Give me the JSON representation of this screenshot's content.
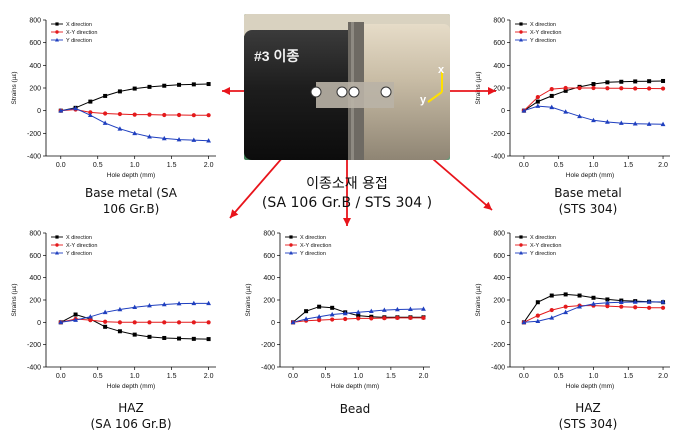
{
  "photo": {
    "marker_text": "#3 이종",
    "axis_x_label": "x",
    "axis_y_label": "y"
  },
  "center_caption": {
    "line1": "이종소재 용접",
    "line2": "(SA 106 Gr.B / STS 304 )"
  },
  "colors": {
    "x_direction": "#000000",
    "xy_direction": "#e41a1c",
    "y_direction": "#1f3fbf",
    "arrow": "#e8141b"
  },
  "chart_data": [
    {
      "type": "line",
      "caption_line1": "Base metal  (SA",
      "caption_line2": "106  Gr.B)",
      "xlabel": "Hole depth (mm)",
      "ylabel": "Strains (µε)",
      "xlim": [
        -0.2,
        2.1
      ],
      "ylim": [
        -400,
        800
      ],
      "xticks": [
        "0.0",
        "0.5",
        "1.0",
        "1.5",
        "2.0"
      ],
      "yticks": [
        "-400",
        "-200",
        "0",
        "200",
        "400",
        "600",
        "800"
      ],
      "legend_position": "top-left",
      "series": [
        {
          "name": "X direction",
          "color": "#000000",
          "marker": "square",
          "x": [
            0.0,
            0.2,
            0.4,
            0.6,
            0.8,
            1.0,
            1.2,
            1.4,
            1.6,
            1.8,
            2.0
          ],
          "y": [
            0,
            25,
            80,
            130,
            170,
            195,
            210,
            220,
            228,
            232,
            235
          ]
        },
        {
          "name": "X-Y direction",
          "color": "#e41a1c",
          "marker": "circle",
          "x": [
            0.0,
            0.2,
            0.4,
            0.6,
            0.8,
            1.0,
            1.2,
            1.4,
            1.6,
            1.8,
            2.0
          ],
          "y": [
            0,
            10,
            -15,
            -25,
            -30,
            -35,
            -35,
            -38,
            -38,
            -40,
            -40
          ]
        },
        {
          "name": "Y direction",
          "color": "#1f3fbf",
          "marker": "triangle",
          "x": [
            0.0,
            0.2,
            0.4,
            0.6,
            0.8,
            1.0,
            1.2,
            1.4,
            1.6,
            1.8,
            2.0
          ],
          "y": [
            0,
            20,
            -40,
            -110,
            -160,
            -200,
            -230,
            -245,
            -255,
            -260,
            -265
          ]
        }
      ]
    },
    {
      "type": "line",
      "caption_line1": "Base metal",
      "caption_line2": "(STS 304)",
      "xlabel": "Hole depth (mm)",
      "ylabel": "Strains (µε)",
      "xlim": [
        -0.2,
        2.1
      ],
      "ylim": [
        -400,
        800
      ],
      "xticks": [
        "0.0",
        "0.5",
        "1.0",
        "1.5",
        "2.0"
      ],
      "yticks": [
        "-400",
        "-200",
        "0",
        "200",
        "400",
        "600",
        "800"
      ],
      "legend_position": "top-left",
      "series": [
        {
          "name": "X direction",
          "color": "#000000",
          "marker": "square",
          "x": [
            0.0,
            0.2,
            0.4,
            0.6,
            0.8,
            1.0,
            1.2,
            1.4,
            1.6,
            1.8,
            2.0
          ],
          "y": [
            0,
            80,
            130,
            175,
            210,
            235,
            250,
            255,
            258,
            260,
            262
          ]
        },
        {
          "name": "X-Y direction",
          "color": "#e41a1c",
          "marker": "circle",
          "x": [
            0.0,
            0.2,
            0.4,
            0.6,
            0.8,
            1.0,
            1.2,
            1.4,
            1.6,
            1.8,
            2.0
          ],
          "y": [
            0,
            120,
            190,
            200,
            200,
            200,
            198,
            198,
            196,
            196,
            195
          ]
        },
        {
          "name": "Y direction",
          "color": "#1f3fbf",
          "marker": "triangle",
          "x": [
            0.0,
            0.2,
            0.4,
            0.6,
            0.8,
            1.0,
            1.2,
            1.4,
            1.6,
            1.8,
            2.0
          ],
          "y": [
            0,
            40,
            30,
            -10,
            -50,
            -85,
            -100,
            -110,
            -115,
            -118,
            -120
          ]
        }
      ]
    },
    {
      "type": "line",
      "caption_line1": "HAZ",
      "caption_line2": "(SA 106 Gr.B)",
      "xlabel": "Hole depth (mm)",
      "ylabel": "Strains (µε)",
      "xlim": [
        -0.2,
        2.1
      ],
      "ylim": [
        -400,
        800
      ],
      "xticks": [
        "0.0",
        "0.5",
        "1.0",
        "1.5",
        "2.0"
      ],
      "yticks": [
        "-400",
        "-200",
        "0",
        "200",
        "400",
        "600",
        "800"
      ],
      "legend_position": "top-left",
      "series": [
        {
          "name": "X direction",
          "color": "#000000",
          "marker": "square",
          "x": [
            0.0,
            0.2,
            0.4,
            0.6,
            0.8,
            1.0,
            1.2,
            1.4,
            1.6,
            1.8,
            2.0
          ],
          "y": [
            0,
            70,
            30,
            -40,
            -80,
            -110,
            -130,
            -140,
            -145,
            -148,
            -150
          ]
        },
        {
          "name": "X-Y direction",
          "color": "#e41a1c",
          "marker": "circle",
          "x": [
            0.0,
            0.2,
            0.4,
            0.6,
            0.8,
            1.0,
            1.2,
            1.4,
            1.6,
            1.8,
            2.0
          ],
          "y": [
            0,
            30,
            20,
            5,
            0,
            0,
            0,
            0,
            0,
            0,
            0
          ]
        },
        {
          "name": "Y direction",
          "color": "#1f3fbf",
          "marker": "triangle",
          "x": [
            0.0,
            0.2,
            0.4,
            0.6,
            0.8,
            1.0,
            1.2,
            1.4,
            1.6,
            1.8,
            2.0
          ],
          "y": [
            0,
            20,
            50,
            90,
            115,
            135,
            150,
            160,
            168,
            170,
            170
          ]
        }
      ]
    },
    {
      "type": "line",
      "caption_line1": "Bead",
      "caption_line2": "",
      "xlabel": "Hole depth (mm)",
      "ylabel": "Strains (µε)",
      "xlim": [
        -0.2,
        2.1
      ],
      "ylim": [
        -400,
        800
      ],
      "xticks": [
        "0.0",
        "0.5",
        "1.0",
        "1.5",
        "2.0"
      ],
      "yticks": [
        "-400",
        "-200",
        "0",
        "200",
        "400",
        "600",
        "800"
      ],
      "legend_position": "top-left",
      "series": [
        {
          "name": "X direction",
          "color": "#000000",
          "marker": "square",
          "x": [
            0.0,
            0.2,
            0.4,
            0.6,
            0.8,
            1.0,
            1.2,
            1.4,
            1.6,
            1.8,
            2.0
          ],
          "y": [
            0,
            100,
            140,
            130,
            90,
            60,
            50,
            45,
            45,
            45,
            45
          ]
        },
        {
          "name": "X-Y direction",
          "color": "#e41a1c",
          "marker": "circle",
          "x": [
            0.0,
            0.2,
            0.4,
            0.6,
            0.8,
            1.0,
            1.2,
            1.4,
            1.6,
            1.8,
            2.0
          ],
          "y": [
            0,
            15,
            20,
            25,
            30,
            35,
            35,
            38,
            40,
            40,
            40
          ]
        },
        {
          "name": "Y direction",
          "color": "#1f3fbf",
          "marker": "triangle",
          "x": [
            0.0,
            0.2,
            0.4,
            0.6,
            0.8,
            1.0,
            1.2,
            1.4,
            1.6,
            1.8,
            2.0
          ],
          "y": [
            0,
            30,
            50,
            70,
            80,
            90,
            100,
            110,
            115,
            118,
            120
          ]
        }
      ]
    },
    {
      "type": "line",
      "caption_line1": "HAZ",
      "caption_line2": "(STS 304)",
      "xlabel": "Hole depth (mm)",
      "ylabel": "Strains (µε)",
      "xlim": [
        -0.2,
        2.1
      ],
      "ylim": [
        -400,
        800
      ],
      "xticks": [
        "0.0",
        "0.5",
        "1.0",
        "1.5",
        "2.0"
      ],
      "yticks": [
        "-400",
        "-200",
        "0",
        "200",
        "400",
        "600",
        "800"
      ],
      "legend_position": "top-left",
      "series": [
        {
          "name": "X direction",
          "color": "#000000",
          "marker": "square",
          "x": [
            0.0,
            0.2,
            0.4,
            0.6,
            0.8,
            1.0,
            1.2,
            1.4,
            1.6,
            1.8,
            2.0
          ],
          "y": [
            0,
            180,
            240,
            250,
            240,
            220,
            205,
            195,
            190,
            185,
            180
          ]
        },
        {
          "name": "X-Y direction",
          "color": "#e41a1c",
          "marker": "circle",
          "x": [
            0.0,
            0.2,
            0.4,
            0.6,
            0.8,
            1.0,
            1.2,
            1.4,
            1.6,
            1.8,
            2.0
          ],
          "y": [
            0,
            60,
            110,
            140,
            150,
            150,
            145,
            140,
            135,
            130,
            130
          ]
        },
        {
          "name": "Y direction",
          "color": "#1f3fbf",
          "marker": "triangle",
          "x": [
            0.0,
            0.2,
            0.4,
            0.6,
            0.8,
            1.0,
            1.2,
            1.4,
            1.6,
            1.8,
            2.0
          ],
          "y": [
            0,
            10,
            40,
            90,
            140,
            165,
            175,
            180,
            182,
            183,
            183
          ]
        }
      ]
    }
  ]
}
